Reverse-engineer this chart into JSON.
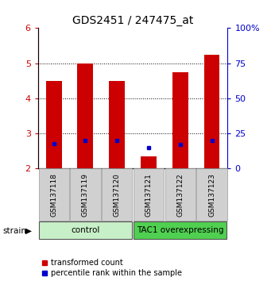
{
  "title": "GDS2451 / 247475_at",
  "samples": [
    "GSM137118",
    "GSM137119",
    "GSM137120",
    "GSM137121",
    "GSM137122",
    "GSM137123"
  ],
  "groups": {
    "control": [
      0,
      1,
      2
    ],
    "TAC1 overexpressing": [
      3,
      4,
      5
    ]
  },
  "group_colors": {
    "control": "#c8f0c8",
    "TAC1 overexpressing": "#50d050"
  },
  "transformed_counts": [
    4.5,
    5.0,
    4.5,
    2.35,
    4.75,
    5.25
  ],
  "percentile_ranks": [
    18,
    20,
    20,
    15,
    17,
    20
  ],
  "bar_bottom": 2.0,
  "ylim": [
    2.0,
    6.0
  ],
  "yticks": [
    2,
    3,
    4,
    5,
    6
  ],
  "ytick_color": "#cc0000",
  "right_yticks": [
    0,
    25,
    50,
    75,
    100
  ],
  "right_ytick_labels": [
    "0",
    "25",
    "50",
    "75",
    "100%"
  ],
  "right_ytick_color": "#0000cc",
  "bar_color": "#cc0000",
  "percentile_color": "#0000cc",
  "bar_width": 0.5,
  "legend_red_label": "transformed count",
  "legend_blue_label": "percentile rank within the sample",
  "strain_label": "strain",
  "background_color": "#ffffff",
  "xticklabel_bg": "#d0d0d0"
}
